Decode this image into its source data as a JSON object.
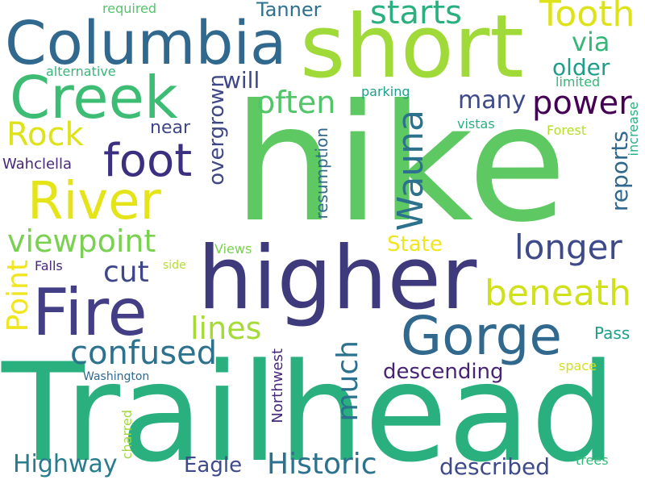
{
  "words": {
    "hike": "hike",
    "trailhead": "Trailhead",
    "higher": "higher",
    "short": "short",
    "columbia": "Columbia",
    "creek": "Creek",
    "fire": "Fire",
    "gorge": "Gorge",
    "river": "River",
    "foot": "foot",
    "wauna": "Wauna",
    "tooth": "Tooth",
    "starts": "starts",
    "viewpoint": "viewpoint",
    "power": "power",
    "longer": "longer",
    "historic": "Historic",
    "beneath": "beneath",
    "often": "often",
    "rock": "Rock",
    "point": "Point",
    "confused": "confused",
    "much": "much",
    "lines": "lines",
    "cut": "cut",
    "overgrown": "overgrown",
    "highway": "Highway",
    "described": "described",
    "many": "many",
    "via": "via",
    "older": "older",
    "will": "will",
    "reports": "reports",
    "descending": "descending",
    "eagle": "Eagle",
    "state": "State",
    "tanner": "Tanner",
    "near": "near",
    "pass": "Pass",
    "resumption": "resumption",
    "northwest": "Northwest",
    "wahclella": "Wahclella",
    "alternative": "alternative",
    "required": "required",
    "limited": "limited",
    "parking": "parking",
    "vistas": "vistas",
    "forest": "Forest",
    "increase": "increase",
    "falls": "Falls",
    "views": "Views",
    "side": "side",
    "washington": "Washington",
    "space": "space",
    "charred": "charred",
    "trees": "trees"
  },
  "colors": {
    "dark_purple": "#440154",
    "indigo": "#482878",
    "slate_blue": "#3e4a89",
    "steel_blue": "#31688e",
    "teal": "#26828e",
    "sea_green": "#1f9e89",
    "green": "#35b779",
    "light_green": "#6ece58",
    "lime": "#b5de2b",
    "yellow": "#fde725"
  }
}
